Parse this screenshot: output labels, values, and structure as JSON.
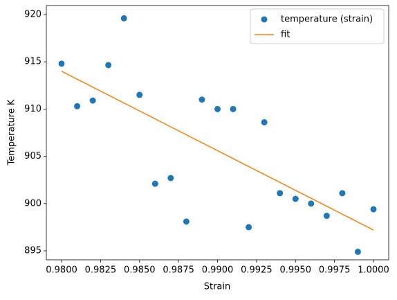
{
  "chart_data": {
    "type": "scatter",
    "xlabel": "Strain",
    "ylabel": "Temperature K",
    "xlim": [
      0.979024,
      1.000976
    ],
    "ylim": [
      894.05,
      920.95
    ],
    "xticks": [
      {
        "value": 0.98,
        "label": "0.9800"
      },
      {
        "value": 0.9825,
        "label": "0.9825"
      },
      {
        "value": 0.985,
        "label": "0.9850"
      },
      {
        "value": 0.9875,
        "label": "0.9875"
      },
      {
        "value": 0.99,
        "label": "0.9900"
      },
      {
        "value": 0.9925,
        "label": "0.9925"
      },
      {
        "value": 0.995,
        "label": "0.9950"
      },
      {
        "value": 0.9975,
        "label": "0.9975"
      },
      {
        "value": 1.0,
        "label": "1.0000"
      }
    ],
    "yticks": [
      895,
      900,
      905,
      910,
      915,
      920
    ],
    "legend": "upper right",
    "series": [
      {
        "name": "temperature (strain)",
        "color": "#1f77b4",
        "type": "scatter",
        "x": [
          0.98,
          0.981,
          0.982,
          0.983,
          0.984,
          0.985,
          0.986,
          0.987,
          0.988,
          0.989,
          0.99,
          0.991,
          0.992,
          0.993,
          0.994,
          0.995,
          0.996,
          0.997,
          0.998,
          0.999,
          1.0
        ],
        "values": [
          914.8,
          910.3,
          910.9,
          914.65,
          919.6,
          911.5,
          902.1,
          902.7,
          898.1,
          911.0,
          910.0,
          910.0,
          897.5,
          908.6,
          901.1,
          900.5,
          900.0,
          898.7,
          901.1,
          894.9,
          899.4
        ]
      },
      {
        "name": "fit",
        "color": "#ff7f0e",
        "type": "line",
        "x": [
          0.98,
          1.0
        ],
        "values": [
          914.0,
          897.2
        ]
      }
    ]
  }
}
